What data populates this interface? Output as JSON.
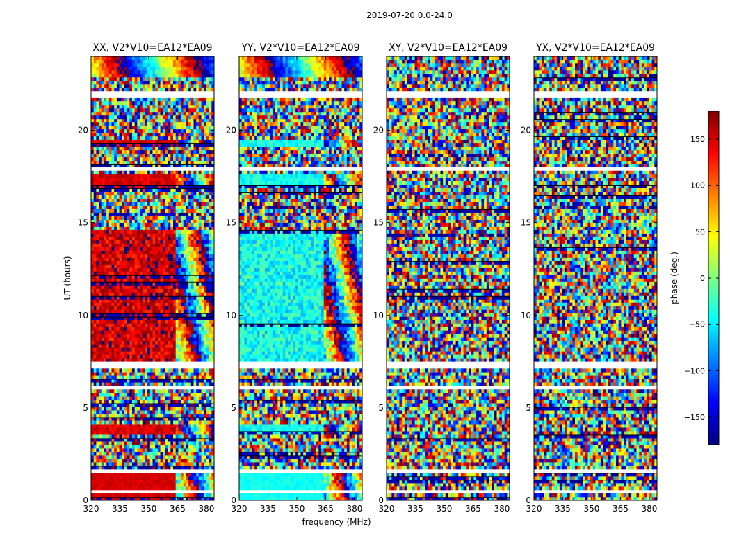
{
  "figure_title": "2019-07-20 0.0-24.0",
  "chart_data": {
    "type": "heatmap",
    "title": "2019-07-20 0.0-24.0",
    "xlabel": "frequency (MHz)",
    "ylabel": "UT (hours)",
    "xlim": [
      320,
      384
    ],
    "ylim": [
      0,
      24
    ],
    "x_ticks": [
      320,
      335,
      350,
      365,
      380
    ],
    "y_ticks": [
      0,
      5,
      10,
      15,
      20
    ],
    "panels": [
      {
        "title": "XX, V2*V10=EA12*EA09",
        "pol": "XX"
      },
      {
        "title": "YY, V2*V10=EA12*EA09",
        "pol": "YY"
      },
      {
        "title": "XY, V2*V10=EA12*EA09",
        "pol": "XY"
      },
      {
        "title": "YX, V2*V10=EA12*EA09",
        "pol": "YX"
      }
    ],
    "colorbar": {
      "label": "phase (deg.)",
      "range": [
        -180,
        180
      ],
      "ticks": [
        -150,
        -100,
        -50,
        0,
        50,
        100,
        150
      ],
      "tick_labels": [
        "−150",
        "−100",
        "−50",
        "0",
        "50",
        "100",
        "150"
      ],
      "colormap": "jet",
      "colors": [
        "#00007f",
        "#0000ff",
        "#007fff",
        "#00ffff",
        "#7fff7f",
        "#ffff00",
        "#ff7f00",
        "#ff0000",
        "#7f0000"
      ]
    },
    "blank_ut_ranges": [
      [
        0.45,
        0.5
      ],
      [
        1.45,
        1.75
      ],
      [
        6.0,
        6.2
      ],
      [
        7.2,
        7.45
      ],
      [
        17.8,
        18.0
      ],
      [
        21.8,
        22.1
      ]
    ]
  }
}
